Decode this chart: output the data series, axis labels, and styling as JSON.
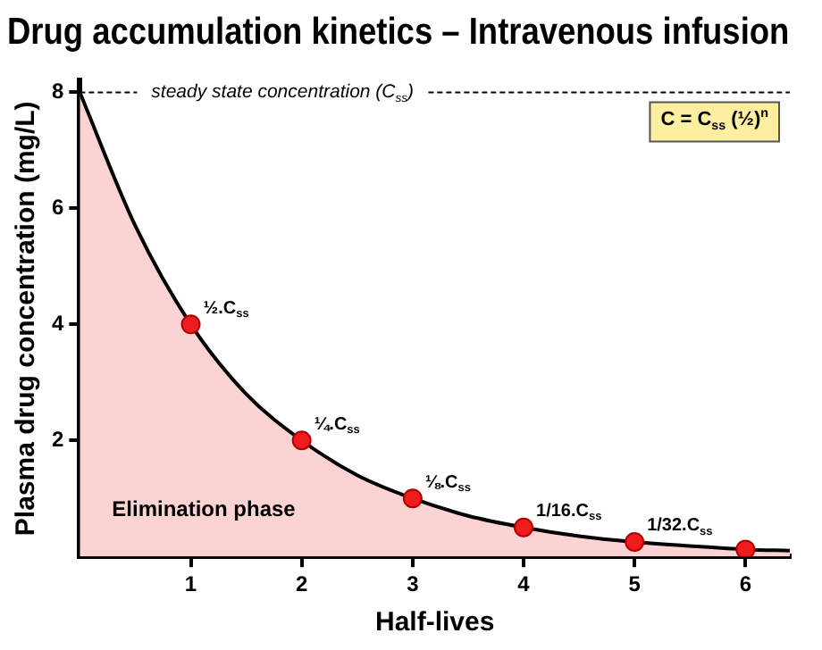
{
  "chart_data": {
    "type": "area",
    "title": "Drug accumulation kinetics – Intravenous infusion",
    "xlabel": "Half-lives",
    "ylabel": "Plasma drug concentration (mg/L)",
    "xlim": [
      0,
      6.4
    ],
    "xticks": [
      1,
      2,
      3,
      4,
      5,
      6
    ],
    "ylim": [
      0,
      8.2
    ],
    "yticks": [
      2,
      4,
      6,
      8
    ],
    "grid": false,
    "legend": false,
    "series": [
      {
        "color": "#fbd3d3",
        "x": [
          0,
          0.5,
          1,
          1.5,
          2,
          2.5,
          3,
          3.5,
          4,
          4.5,
          5,
          5.5,
          6,
          6.4
        ],
        "values": [
          8,
          5.7,
          4,
          2.8,
          2,
          1.4,
          1,
          0.7,
          0.5,
          0.35,
          0.25,
          0.18,
          0.12,
          0.1
        ]
      },
      {
        "type": "scatter",
        "marker": "circle",
        "color": "#ee1c1c",
        "x": [
          1,
          2,
          3,
          4,
          5,
          6
        ],
        "values": [
          4,
          2,
          1,
          0.5,
          0.25,
          0.12
        ],
        "value_labels": [
          "½.C$_{ss}$",
          "¼.C$_{ss}$",
          "⅛.C$_{ss}$",
          "1/16.C$_{ss}$",
          "1/32.C$_{ss}$",
          null
        ]
      }
    ],
    "ref_lines": [
      {
        "axis": "y",
        "value": 8,
        "label": "steady state concentration (C$_{ss}$)",
        "line_style": "dashed"
      }
    ],
    "annotations": [
      "Elimination phase",
      "C = C$_{ss}$ (½)$^{n}$"
    ]
  }
}
